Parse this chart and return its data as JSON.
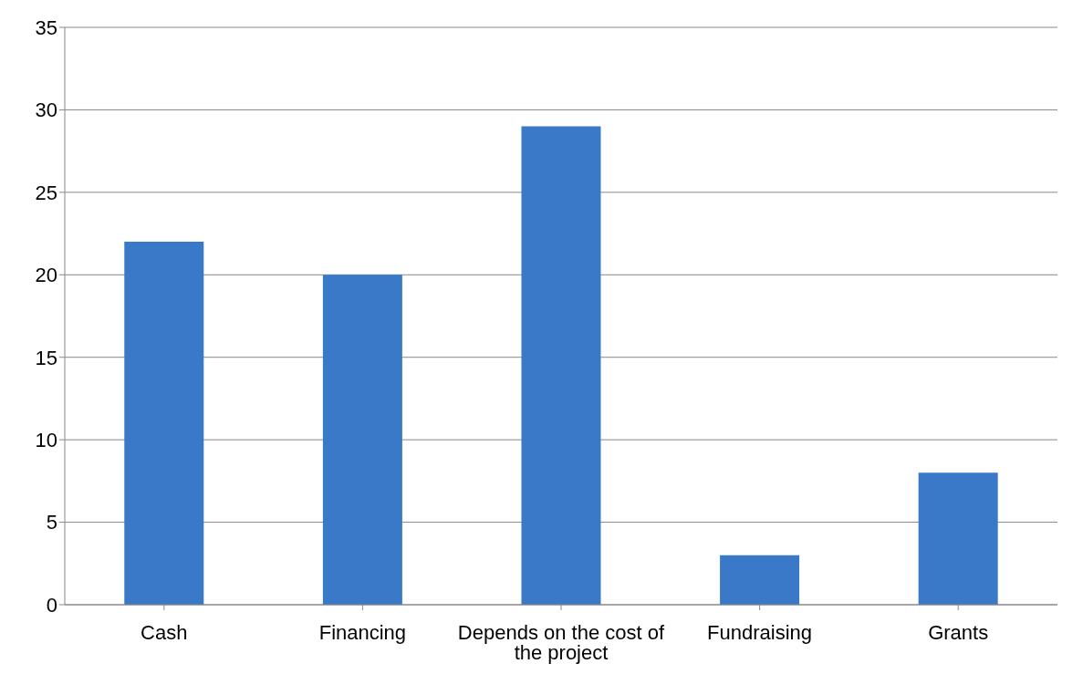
{
  "chart_data": {
    "type": "bar",
    "categories": [
      "Cash",
      "Financing",
      "Depends on the cost of the project",
      "Fundraising",
      "Grants"
    ],
    "values": [
      22,
      20,
      29,
      3,
      8
    ],
    "color": "#3a78c8",
    "ylim": [
      0,
      35
    ],
    "yticks": [
      0,
      5,
      10,
      15,
      20,
      25,
      30,
      35
    ],
    "grid": "y"
  }
}
